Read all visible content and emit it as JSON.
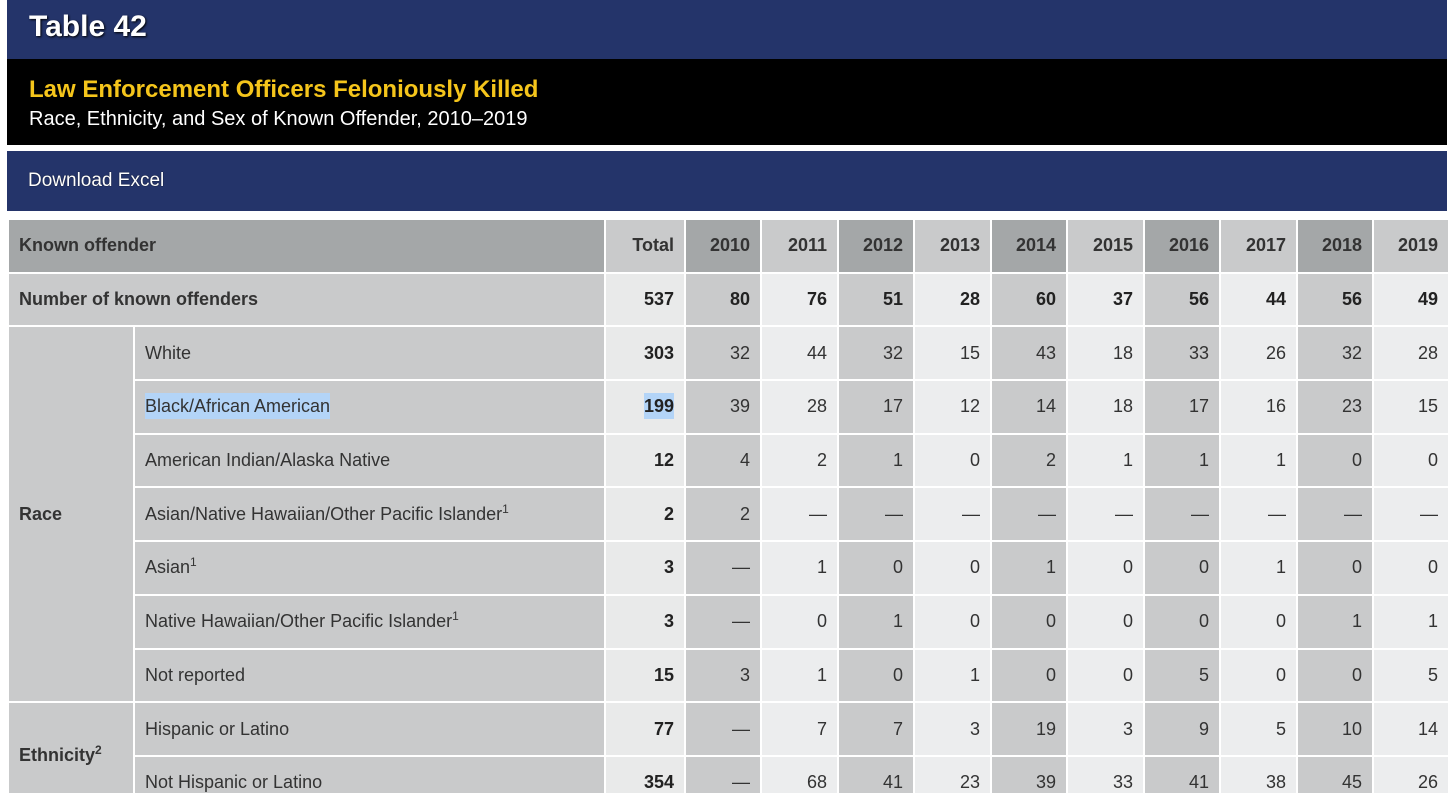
{
  "table_title": "Table 42",
  "heading": "Law Enforcement Officers Feloniously Killed",
  "subheading": "Race, Ethnicity, and Sex of Known Offender, 2010–2019",
  "download_label": "Download Excel",
  "table": {
    "header_label": "Known offender",
    "total_label": "Total",
    "years": [
      "2010",
      "2011",
      "2012",
      "2013",
      "2014",
      "2015",
      "2016",
      "2017",
      "2018",
      "2019"
    ],
    "summary": {
      "label": "Number of known offenders",
      "total": "537",
      "values": [
        "80",
        "76",
        "51",
        "28",
        "60",
        "37",
        "56",
        "44",
        "56",
        "49"
      ]
    },
    "groups": [
      {
        "label": "Race",
        "footnote": "",
        "rows": [
          {
            "label": "White",
            "footnote": "",
            "total": "303",
            "values": [
              "32",
              "44",
              "32",
              "15",
              "43",
              "18",
              "33",
              "26",
              "32",
              "28"
            ]
          },
          {
            "label": "Black/African American",
            "footnote": "",
            "total": "199",
            "values": [
              "39",
              "28",
              "17",
              "12",
              "14",
              "18",
              "17",
              "16",
              "23",
              "15"
            ],
            "selected": true
          },
          {
            "label": "American Indian/Alaska Native",
            "footnote": "",
            "total": "12",
            "values": [
              "4",
              "2",
              "1",
              "0",
              "2",
              "1",
              "1",
              "1",
              "0",
              "0"
            ]
          },
          {
            "label": "Asian/Native Hawaiian/Other Pacific Islander",
            "footnote": "1",
            "total": "2",
            "values": [
              "2",
              "—",
              "—",
              "—",
              "—",
              "—",
              "—",
              "—",
              "—",
              "—"
            ]
          },
          {
            "label": "Asian",
            "footnote": "1",
            "total": "3",
            "values": [
              "—",
              "1",
              "0",
              "0",
              "1",
              "0",
              "0",
              "1",
              "0",
              "0"
            ]
          },
          {
            "label": "Native Hawaiian/Other Pacific Islander",
            "footnote": "1",
            "total": "3",
            "values": [
              "—",
              "0",
              "1",
              "0",
              "0",
              "0",
              "0",
              "0",
              "1",
              "1"
            ]
          },
          {
            "label": "Not reported",
            "footnote": "",
            "total": "15",
            "values": [
              "3",
              "1",
              "0",
              "1",
              "0",
              "0",
              "5",
              "0",
              "0",
              "5"
            ]
          }
        ]
      },
      {
        "label": "Ethnicity",
        "footnote": "2",
        "rows": [
          {
            "label": "Hispanic or Latino",
            "footnote": "",
            "total": "77",
            "values": [
              "—",
              "7",
              "7",
              "3",
              "19",
              "3",
              "9",
              "5",
              "10",
              "14"
            ]
          },
          {
            "label": "Not Hispanic or Latino",
            "footnote": "",
            "total": "354",
            "values": [
              "—",
              "68",
              "41",
              "23",
              "39",
              "33",
              "41",
              "38",
              "45",
              "26"
            ]
          }
        ]
      }
    ]
  }
}
